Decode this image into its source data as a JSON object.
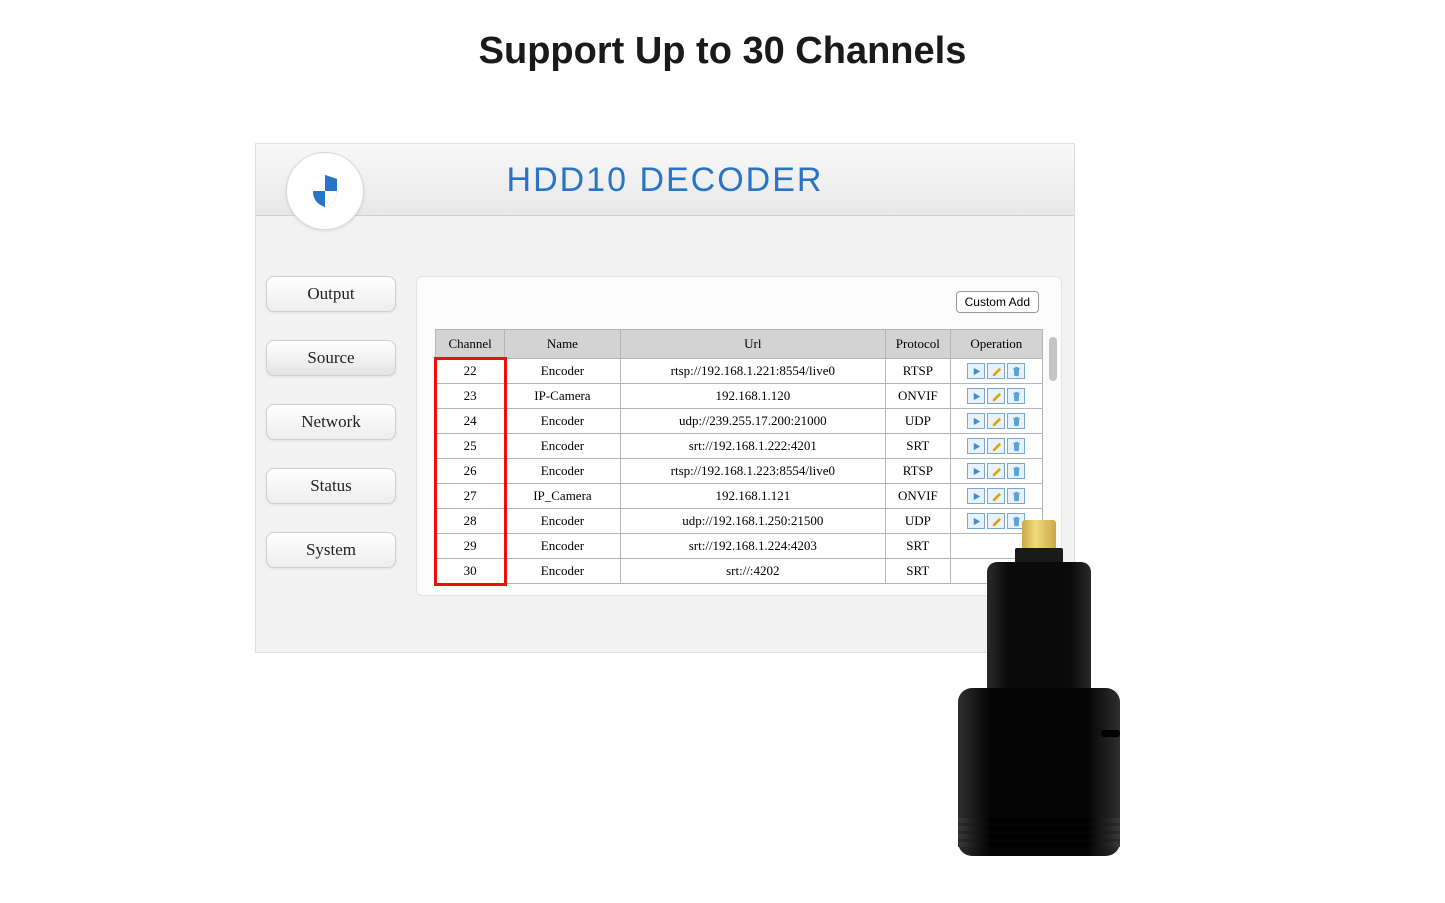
{
  "headline": "Support Up to 30 Channels",
  "app_title": "HDD10 DECODER",
  "accent_color": "#2874c7",
  "highlight_color": "#f20d0d",
  "sidebar": {
    "items": [
      {
        "label": "Output"
      },
      {
        "label": "Source"
      },
      {
        "label": "Network"
      },
      {
        "label": "Status"
      },
      {
        "label": "System"
      }
    ],
    "active_index": 1
  },
  "custom_add_label": "Custom Add",
  "table": {
    "columns": [
      "Channel",
      "Name",
      "Url",
      "Protocol",
      "Operation"
    ],
    "rows": [
      {
        "channel": "22",
        "name": "Encoder",
        "url": "rtsp://192.168.1.221:8554/live0",
        "protocol": "RTSP",
        "ops": true
      },
      {
        "channel": "23",
        "name": "IP-Camera",
        "url": "192.168.1.120",
        "protocol": "ONVIF",
        "ops": true
      },
      {
        "channel": "24",
        "name": "Encoder",
        "url": "udp://239.255.17.200:21000",
        "protocol": "UDP",
        "ops": true
      },
      {
        "channel": "25",
        "name": "Encoder",
        "url": "srt://192.168.1.222:4201",
        "protocol": "SRT",
        "ops": true
      },
      {
        "channel": "26",
        "name": "Encoder",
        "url": "rtsp://192.168.1.223:8554/live0",
        "protocol": "RTSP",
        "ops": true
      },
      {
        "channel": "27",
        "name": "IP_Camera",
        "url": "192.168.1.121",
        "protocol": "ONVIF",
        "ops": true
      },
      {
        "channel": "28",
        "name": "Encoder",
        "url": "udp://192.168.1.250:21500",
        "protocol": "UDP",
        "ops": true
      },
      {
        "channel": "29",
        "name": "Encoder",
        "url": "srt://192.168.1.224:4203",
        "protocol": "SRT",
        "ops": false
      },
      {
        "channel": "30",
        "name": "Encoder",
        "url": "srt://:4202",
        "protocol": "SRT",
        "ops": false
      }
    ]
  },
  "icons": {
    "play_color": "#3c8ed8",
    "edit_color": "#d9a400",
    "delete_color": "#5aa3d8"
  },
  "device": {
    "connector_color": "#e6c860",
    "body_color": "#0a0a0a"
  }
}
